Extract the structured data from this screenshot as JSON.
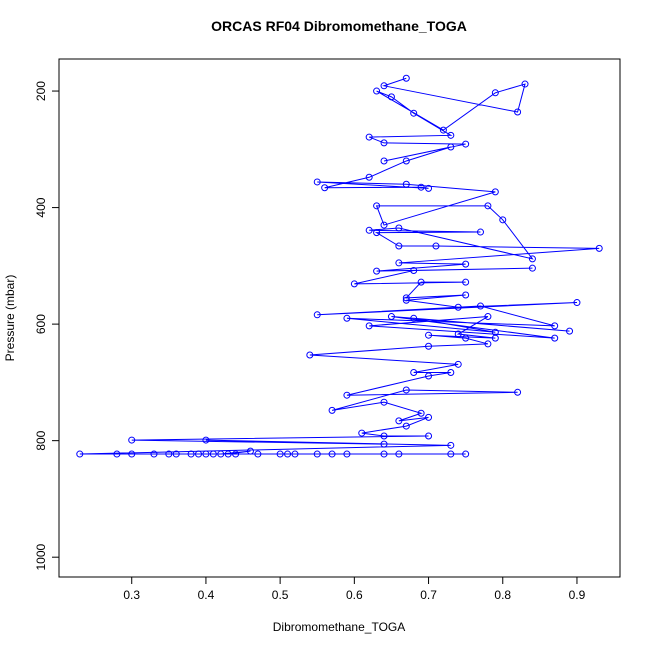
{
  "chart_data": {
    "type": "line",
    "title": "ORCAS RF04 Dibromomethane_TOGA",
    "x_label": "Dibromomethane_TOGA",
    "y_label": "Pressure (mbar)",
    "color": "#0000ff",
    "marker": "circle",
    "x": [
      0.67,
      0.64,
      0.82,
      0.83,
      0.79,
      0.72,
      0.63,
      0.65,
      0.68,
      0.73,
      0.62,
      0.64,
      0.75,
      0.64,
      0.73,
      0.67,
      0.62,
      0.56,
      0.69,
      0.7,
      0.55,
      0.67,
      0.79,
      0.64,
      0.63,
      0.78,
      0.8,
      0.84,
      0.66,
      0.62,
      0.77,
      0.63,
      0.66,
      0.71,
      0.93,
      0.66,
      0.75,
      0.63,
      0.84,
      0.68,
      0.6,
      0.75,
      0.69,
      0.67,
      0.75,
      0.67,
      0.74,
      0.9,
      0.55,
      0.77,
      0.87,
      0.59,
      0.79,
      0.68,
      0.89,
      0.65,
      0.87,
      0.62,
      0.78,
      0.74,
      0.79,
      0.7,
      0.75,
      0.78,
      0.7,
      0.54,
      0.74,
      0.68,
      0.73,
      0.7,
      0.59,
      0.82,
      0.67,
      0.57,
      0.64,
      0.69,
      0.66,
      0.7,
      0.67,
      0.61,
      0.64,
      0.7,
      0.3,
      0.64,
      0.4,
      0.73,
      0.23,
      0.75,
      0.28,
      0.64,
      0.3,
      0.66,
      0.33,
      0.59,
      0.35,
      0.57,
      0.36,
      0.55,
      0.38,
      0.52,
      0.39,
      0.51,
      0.4,
      0.5,
      0.41,
      0.47,
      0.42,
      0.46,
      0.43,
      0.44,
      0.73
    ],
    "y": [
      178,
      191,
      236,
      188,
      203,
      267,
      200,
      210,
      238,
      276,
      279,
      289,
      291,
      320,
      296,
      320,
      348,
      366,
      365,
      367,
      356,
      360,
      373,
      430,
      397,
      397,
      421,
      488,
      435,
      439,
      442,
      443,
      466,
      466,
      470,
      495,
      497,
      509,
      504,
      508,
      531,
      528,
      528,
      555,
      550,
      559,
      571,
      563,
      584,
      569,
      603,
      590,
      614,
      590,
      612,
      587,
      624,
      603,
      587,
      617,
      624,
      619,
      624,
      634,
      638,
      653,
      669,
      683,
      683,
      689,
      722,
      717,
      713,
      748,
      734,
      753,
      766,
      760,
      775,
      787,
      792,
      792,
      799,
      806,
      799,
      808,
      823,
      823,
      823,
      823,
      823,
      823,
      823,
      823,
      823,
      823,
      823,
      823,
      823,
      823,
      823,
      823,
      823,
      823,
      823,
      823,
      823,
      818,
      823,
      823,
      823
    ],
    "xlim": [
      0.202,
      0.958
    ],
    "ylim": [
      1034,
      145
    ],
    "xticks": [
      0.3,
      0.4,
      0.5,
      0.6,
      0.7,
      0.8,
      0.9
    ],
    "yticks": [
      200,
      400,
      600,
      800,
      1000
    ]
  }
}
